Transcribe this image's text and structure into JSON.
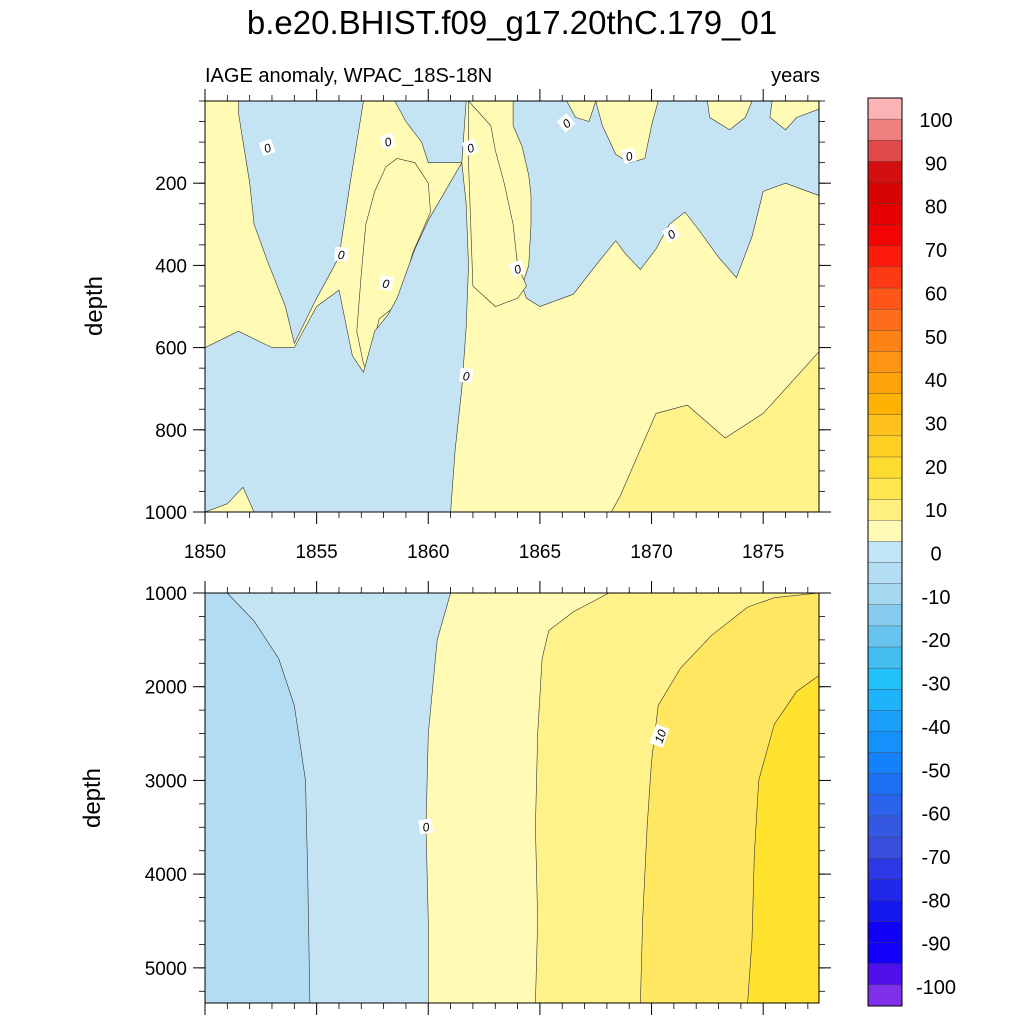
{
  "chart_data": [
    {
      "type": "contour",
      "title": "b.e20.BHIST.f09_g17.20thC.179_01",
      "left_string": "IAGE anomaly, WPAC_18S-18N",
      "right_string": "years",
      "ylabel": "depth",
      "xlim": [
        1850.0,
        1877.5
      ],
      "ylim": [
        0,
        1000
      ],
      "y_reversed": true,
      "x_ticks": [
        1855,
        1860,
        1865,
        1870,
        1875
      ],
      "y_ticks": [
        200,
        400,
        600,
        800,
        1000
      ],
      "contour_labels": [
        "0",
        "0",
        "0",
        "0",
        "0",
        "0",
        "0",
        "0",
        "0",
        "0"
      ],
      "regions": [
        {
          "value": 5,
          "color": "#fffbb4",
          "polygon": [
            [
              1850.0,
              0
            ],
            [
              1877.5,
              0
            ],
            [
              1877.5,
              1000
            ],
            [
              1850.0,
              1000
            ]
          ]
        },
        {
          "value": 15,
          "color": "#fff28a",
          "polygon": [
            [
              1868.2,
              1000
            ],
            [
              1868.6,
              960
            ],
            [
              1870.2,
              760
            ],
            [
              1871.6,
              740
            ],
            [
              1873.3,
              820
            ],
            [
              1875.0,
              760
            ],
            [
              1877.5,
              610
            ],
            [
              1877.5,
              1000
            ]
          ]
        },
        {
          "value": -5,
          "color": "#c4e4f4",
          "polygon": [
            [
              1850.0,
              0
            ],
            [
              1851.5,
              0
            ],
            [
              1851.5,
              30
            ],
            [
              1852.0,
              200
            ],
            [
              1852.2,
              300
            ],
            [
              1852.8,
              390
            ],
            [
              1853.6,
              500
            ],
            [
              1854.0,
              590
            ],
            [
              1855.0,
              480
            ],
            [
              1856.0,
              380
            ],
            [
              1856.5,
              200
            ],
            [
              1857.1,
              0
            ],
            [
              1858.5,
              0
            ],
            [
              1859.0,
              50
            ],
            [
              1859.7,
              100
            ],
            [
              1860.0,
              150
            ],
            [
              1861.5,
              150
            ],
            [
              1861.7,
              0
            ],
            [
              1863.8,
              0
            ],
            [
              1863.8,
              60
            ],
            [
              1864.2,
              110
            ],
            [
              1864.5,
              180
            ],
            [
              1864.6,
              230
            ],
            [
              1864.6,
              300
            ],
            [
              1864.5,
              400
            ],
            [
              1864.2,
              450
            ],
            [
              1864.4,
              480
            ],
            [
              1865.0,
              500
            ],
            [
              1866.5,
              470
            ],
            [
              1867.5,
              400
            ],
            [
              1868.4,
              340
            ],
            [
              1868.8,
              370
            ],
            [
              1869.5,
              410
            ],
            [
              1870.2,
              360
            ],
            [
              1870.8,
              300
            ],
            [
              1871.5,
              270
            ],
            [
              1872.2,
              320
            ],
            [
              1873.0,
              380
            ],
            [
              1873.8,
              430
            ],
            [
              1874.5,
              330
            ],
            [
              1875.0,
              220
            ],
            [
              1876.0,
              200
            ],
            [
              1877.5,
              230
            ],
            [
              1877.5,
              0
            ]
          ]
        },
        {
          "value": 5,
          "color": "#fffbb4",
          "polygon": [
            [
              1856.8,
              560
            ],
            [
              1857.0,
              420
            ],
            [
              1857.2,
              300
            ],
            [
              1857.6,
              220
            ],
            [
              1858.1,
              160
            ],
            [
              1858.6,
              140
            ],
            [
              1859.4,
              150
            ],
            [
              1860.0,
              200
            ],
            [
              1860.1,
              270
            ],
            [
              1859.3,
              370
            ],
            [
              1858.9,
              450
            ],
            [
              1858.5,
              500
            ],
            [
              1857.8,
              530
            ],
            [
              1857.5,
              600
            ],
            [
              1857.3,
              660
            ],
            [
              1857.1,
              640
            ]
          ]
        },
        {
          "value": -5,
          "color": "#c4e4f4",
          "polygon": [
            [
              1857.1,
              660
            ],
            [
              1857.3,
              620
            ],
            [
              1857.6,
              560
            ],
            [
              1858.2,
              520
            ],
            [
              1858.6,
              480
            ],
            [
              1859.0,
              420
            ],
            [
              1859.4,
              360
            ],
            [
              1860.0,
              290
            ],
            [
              1861.5,
              150
            ],
            [
              1861.7,
              250
            ],
            [
              1861.8,
              400
            ],
            [
              1861.7,
              550
            ],
            [
              1861.5,
              700
            ],
            [
              1861.2,
              850
            ],
            [
              1861.0,
              1000
            ],
            [
              1852.2,
              1000
            ],
            [
              1851.7,
              940
            ],
            [
              1851.0,
              980
            ],
            [
              1850.0,
              1000
            ],
            [
              1850.0,
              600
            ],
            [
              1851.5,
              560
            ],
            [
              1853.0,
              600
            ],
            [
              1854.0,
              600
            ],
            [
              1855.0,
              500
            ],
            [
              1856.0,
              460
            ],
            [
              1856.6,
              620
            ]
          ]
        },
        {
          "value": 5,
          "color": "#fffbb4",
          "polygon": [
            [
              1861.8,
              0
            ],
            [
              1862.8,
              60
            ],
            [
              1863.0,
              120
            ],
            [
              1863.4,
              200
            ],
            [
              1863.8,
              300
            ],
            [
              1864.0,
              400
            ],
            [
              1864.4,
              450
            ],
            [
              1864.0,
              480
            ],
            [
              1863.0,
              500
            ],
            [
              1862.0,
              450
            ],
            [
              1861.9,
              300
            ],
            [
              1861.8,
              150
            ]
          ]
        },
        {
          "value": 5,
          "color": "#fffbb4",
          "polygon": [
            [
              1866.2,
              0
            ],
            [
              1867.5,
              0
            ],
            [
              1867.8,
              60
            ],
            [
              1868.4,
              130
            ],
            [
              1869.0,
              150
            ],
            [
              1869.7,
              140
            ],
            [
              1870.0,
              60
            ],
            [
              1870.3,
              0
            ],
            [
              1872.5,
              0
            ],
            [
              1872.6,
              40
            ],
            [
              1873.5,
              70
            ],
            [
              1874.2,
              40
            ],
            [
              1874.5,
              0
            ],
            [
              1875.4,
              0
            ],
            [
              1875.3,
              40
            ],
            [
              1876.0,
              70
            ],
            [
              1876.5,
              40
            ],
            [
              1877.5,
              20
            ],
            [
              1877.5,
              0
            ]
          ]
        },
        {
          "value": 5,
          "color": "#fffbb4",
          "polygon": [
            [
              1866.2,
              0
            ],
            [
              1866.6,
              40
            ],
            [
              1867.2,
              50
            ],
            [
              1867.5,
              0
            ]
          ]
        }
      ]
    },
    {
      "type": "contour",
      "ylabel": "depth",
      "xlim": [
        1850.0,
        1877.5
      ],
      "ylim": [
        1000,
        5375
      ],
      "y_reversed": true,
      "y_ticks": [
        1000,
        2000,
        3000,
        4000,
        5000
      ],
      "contour_labels": [
        "0",
        "10"
      ],
      "regions": [
        {
          "value": -15,
          "color": "#b2dcf2",
          "polygon": [
            [
              1850.0,
              1000
            ],
            [
              1877.5,
              1000
            ],
            [
              1877.5,
              5375
            ],
            [
              1850.0,
              5375
            ]
          ]
        },
        {
          "value": -5,
          "color": "#c4e4f4",
          "polygon": [
            [
              1851.0,
              1000
            ],
            [
              1852.2,
              1300
            ],
            [
              1853.3,
              1700
            ],
            [
              1854.0,
              2200
            ],
            [
              1854.5,
              3000
            ],
            [
              1854.6,
              4000
            ],
            [
              1854.7,
              5375
            ],
            [
              1877.5,
              5375
            ],
            [
              1877.5,
              1000
            ]
          ]
        },
        {
          "value": 5,
          "color": "#fffbb4",
          "polygon": [
            [
              1861.0,
              1000
            ],
            [
              1877.5,
              1000
            ],
            [
              1877.5,
              5375
            ],
            [
              1860.0,
              5375
            ],
            [
              1860.0,
              4500
            ],
            [
              1859.9,
              3500
            ],
            [
              1860.0,
              2500
            ],
            [
              1860.4,
              1500
            ]
          ]
        },
        {
          "value": 15,
          "color": "#fff28a",
          "polygon": [
            [
              1868.1,
              1000
            ],
            [
              1877.5,
              1000
            ],
            [
              1877.5,
              5375
            ],
            [
              1864.8,
              5375
            ],
            [
              1864.9,
              4500
            ],
            [
              1864.8,
              3500
            ],
            [
              1864.9,
              2500
            ],
            [
              1865.1,
              1700
            ],
            [
              1865.4,
              1400
            ],
            [
              1866.5,
              1200
            ]
          ]
        },
        {
          "value": 25,
          "color": "#ffe762",
          "polygon": [
            [
              1877.5,
              1000
            ],
            [
              1877.5,
              5375
            ],
            [
              1869.5,
              5375
            ],
            [
              1869.6,
              4500
            ],
            [
              1869.8,
              3500
            ],
            [
              1870.0,
              2800
            ],
            [
              1870.3,
              2200
            ],
            [
              1871.3,
              1800
            ],
            [
              1872.7,
              1450
            ],
            [
              1874.3,
              1150
            ],
            [
              1875.5,
              1050
            ]
          ]
        },
        {
          "value": 35,
          "color": "#fee22d",
          "polygon": [
            [
              1877.5,
              1880
            ],
            [
              1877.5,
              5375
            ],
            [
              1874.3,
              5375
            ],
            [
              1874.5,
              4700
            ],
            [
              1874.6,
              3800
            ],
            [
              1874.8,
              3000
            ],
            [
              1875.5,
              2400
            ],
            [
              1876.5,
              2050
            ]
          ]
        }
      ]
    }
  ],
  "colorbar": {
    "labels": [
      "100",
      "90",
      "80",
      "70",
      "60",
      "50",
      "40",
      "30",
      "20",
      "10",
      "0",
      "-10",
      "-20",
      "-30",
      "-40",
      "-50",
      "-60",
      "-70",
      "-80",
      "-90",
      "-100"
    ],
    "colors": [
      "#fbb3b6",
      "#f08080",
      "#e14a4a",
      "#d40f0f",
      "#d80303",
      "#e40000",
      "#f30303",
      "#fd1c0b",
      "#fd3a14",
      "#fe5619",
      "#ff6d1b",
      "#ff8216",
      "#ff9313",
      "#ffa30a",
      "#ffb300",
      "#ffc21d",
      "#ffd024",
      "#fedc2e",
      "#fee64f",
      "#fff07f",
      "#fffab5",
      "#c1e4f6",
      "#b3def4",
      "#a5d8f1",
      "#86ccf0",
      "#68c3ee",
      "#46bdf0",
      "#22c1fb",
      "#1fb3fb",
      "#1aa0fb",
      "#1491fb",
      "#1481fb",
      "#1a6ff3",
      "#2b63ec",
      "#3458e2",
      "#3a4ede",
      "#2e38e6",
      "#2128ea",
      "#1418ee",
      "#1000f8",
      "#1400fa",
      "#5010ea",
      "#8030e8"
    ]
  }
}
